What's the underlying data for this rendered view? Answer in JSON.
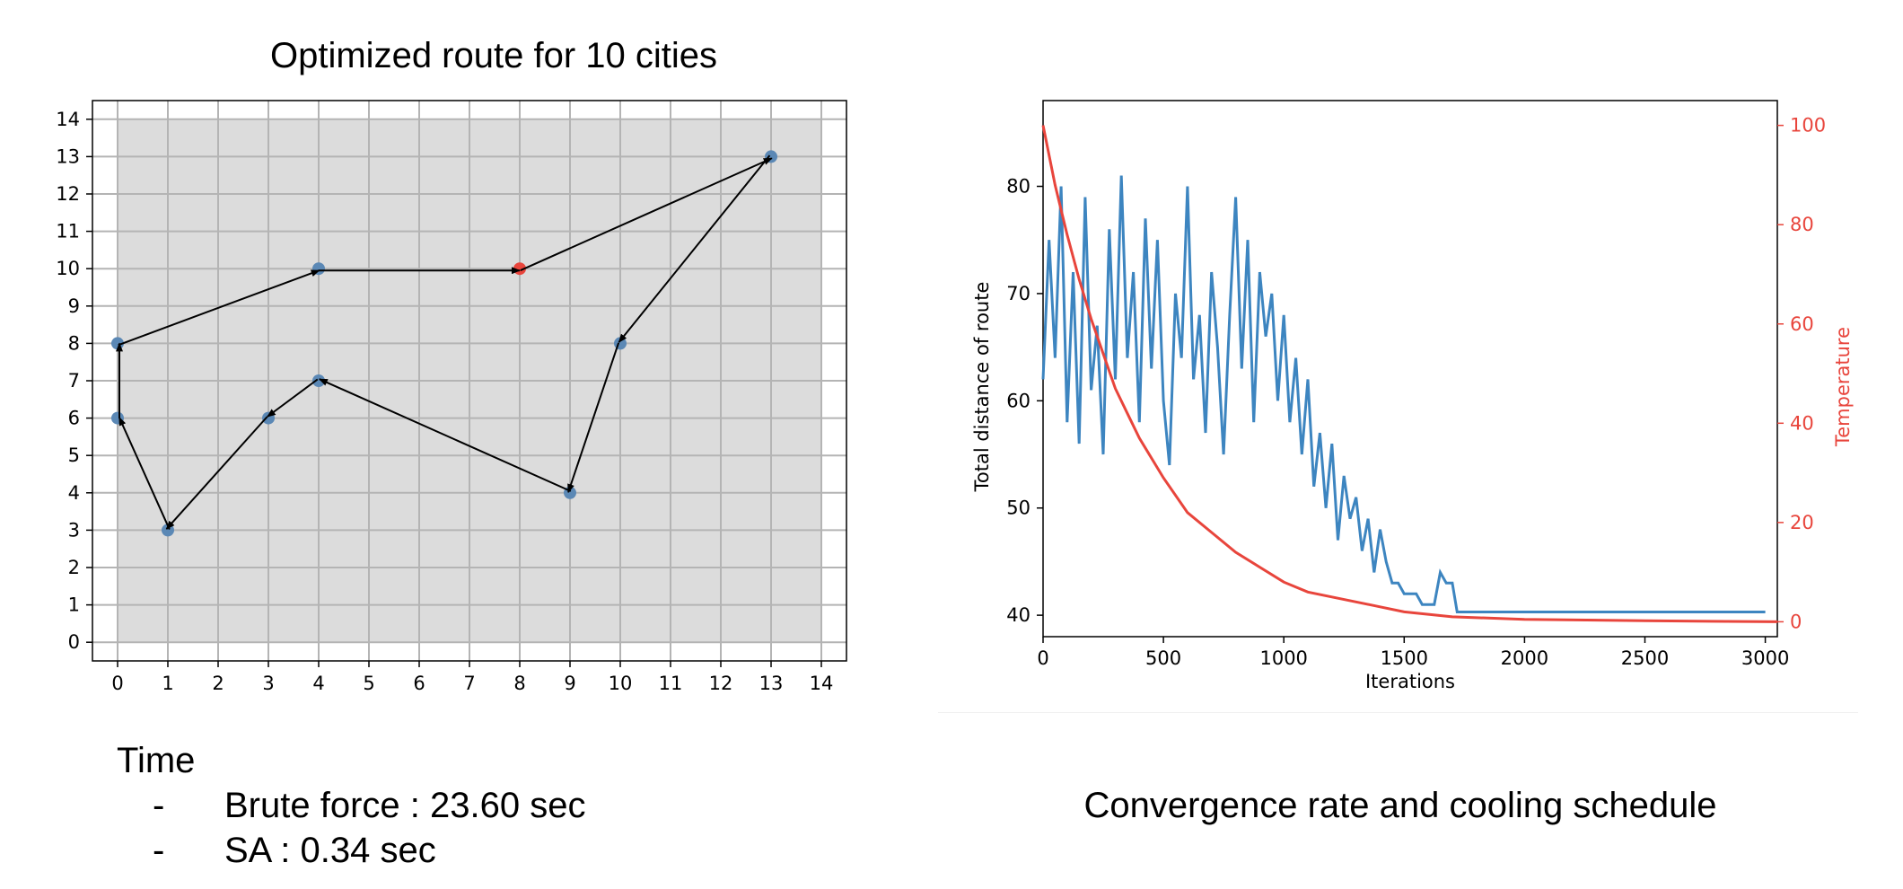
{
  "chart_data": [
    {
      "type": "scatter",
      "title": "Optimized route for 10 cities",
      "xlim": [
        -0.5,
        14.5
      ],
      "ylim": [
        -0.5,
        14.5
      ],
      "x_ticks": [
        0,
        1,
        2,
        3,
        4,
        5,
        6,
        7,
        8,
        9,
        10,
        11,
        12,
        13,
        14
      ],
      "y_ticks": [
        0,
        1,
        2,
        3,
        4,
        5,
        6,
        7,
        8,
        9,
        10,
        11,
        12,
        13,
        14
      ],
      "grid": true,
      "background": "#dcdcdc",
      "points": [
        {
          "x": 8,
          "y": 10,
          "start": true
        },
        {
          "x": 13,
          "y": 13
        },
        {
          "x": 10,
          "y": 8
        },
        {
          "x": 9,
          "y": 4
        },
        {
          "x": 4,
          "y": 7
        },
        {
          "x": 3,
          "y": 6
        },
        {
          "x": 1,
          "y": 3
        },
        {
          "x": 0,
          "y": 6
        },
        {
          "x": 0,
          "y": 8
        },
        {
          "x": 4,
          "y": 10
        }
      ],
      "route": [
        [
          8,
          10
        ],
        [
          13,
          13
        ],
        [
          10,
          8
        ],
        [
          9,
          4
        ],
        [
          4,
          7
        ],
        [
          3,
          6
        ],
        [
          1,
          3
        ],
        [
          0,
          6
        ],
        [
          0,
          8
        ],
        [
          4,
          10
        ],
        [
          8,
          10
        ]
      ],
      "point_color": "#5b88b5",
      "start_color": "#e8453c"
    },
    {
      "type": "line",
      "xlabel": "Iterations",
      "ylabel": "Total distance of route",
      "y2label": "Temperature",
      "xlim": [
        0,
        3050
      ],
      "ylim": [
        38,
        88
      ],
      "y2lim": [
        -3,
        105
      ],
      "x_ticks": [
        0,
        500,
        1000,
        1500,
        2000,
        2500,
        3000
      ],
      "y_ticks": [
        40,
        50,
        60,
        70,
        80
      ],
      "y2_ticks": [
        0,
        20,
        40,
        60,
        80,
        100
      ],
      "series": [
        {
          "axis": "left",
          "color": "#3d85c0",
          "points": [
            [
              0,
              62
            ],
            [
              25,
              75
            ],
            [
              50,
              64
            ],
            [
              75,
              80
            ],
            [
              100,
              58
            ],
            [
              125,
              72
            ],
            [
              150,
              56
            ],
            [
              175,
              79
            ],
            [
              200,
              61
            ],
            [
              225,
              67
            ],
            [
              250,
              55
            ],
            [
              275,
              76
            ],
            [
              300,
              62
            ],
            [
              325,
              81
            ],
            [
              350,
              64
            ],
            [
              375,
              72
            ],
            [
              400,
              58
            ],
            [
              425,
              77
            ],
            [
              450,
              63
            ],
            [
              475,
              75
            ],
            [
              500,
              60
            ],
            [
              525,
              54
            ],
            [
              550,
              70
            ],
            [
              575,
              64
            ],
            [
              600,
              80
            ],
            [
              625,
              62
            ],
            [
              650,
              68
            ],
            [
              675,
              57
            ],
            [
              700,
              72
            ],
            [
              725,
              65
            ],
            [
              750,
              55
            ],
            [
              775,
              68
            ],
            [
              800,
              79
            ],
            [
              825,
              63
            ],
            [
              850,
              75
            ],
            [
              875,
              58
            ],
            [
              900,
              72
            ],
            [
              925,
              66
            ],
            [
              950,
              70
            ],
            [
              975,
              60
            ],
            [
              1000,
              68
            ],
            [
              1025,
              58
            ],
            [
              1050,
              64
            ],
            [
              1075,
              55
            ],
            [
              1100,
              62
            ],
            [
              1125,
              52
            ],
            [
              1150,
              57
            ],
            [
              1175,
              50
            ],
            [
              1200,
              56
            ],
            [
              1225,
              47
            ],
            [
              1250,
              53
            ],
            [
              1275,
              49
            ],
            [
              1300,
              51
            ],
            [
              1325,
              46
            ],
            [
              1350,
              49
            ],
            [
              1375,
              44
            ],
            [
              1400,
              48
            ],
            [
              1425,
              45
            ],
            [
              1450,
              43
            ],
            [
              1475,
              43
            ],
            [
              1500,
              42
            ],
            [
              1550,
              42
            ],
            [
              1575,
              41
            ],
            [
              1625,
              41
            ],
            [
              1650,
              44
            ],
            [
              1675,
              43
            ],
            [
              1700,
              43
            ],
            [
              1720,
              40.3
            ],
            [
              1800,
              40.3
            ],
            [
              1900,
              40.3
            ],
            [
              2000,
              40.3
            ],
            [
              2200,
              40.3
            ],
            [
              2500,
              40.3
            ],
            [
              3000,
              40.3
            ]
          ]
        },
        {
          "axis": "right",
          "color": "#e8453c",
          "points": [
            [
              0,
              100
            ],
            [
              50,
              88
            ],
            [
              100,
              78
            ],
            [
              150,
              69
            ],
            [
              200,
              61
            ],
            [
              250,
              54
            ],
            [
              300,
              47
            ],
            [
              350,
              42
            ],
            [
              400,
              37
            ],
            [
              450,
              33
            ],
            [
              500,
              29
            ],
            [
              600,
              22
            ],
            [
              700,
              18
            ],
            [
              800,
              14
            ],
            [
              900,
              11
            ],
            [
              1000,
              8
            ],
            [
              1100,
              6
            ],
            [
              1200,
              5
            ],
            [
              1300,
              4
            ],
            [
              1400,
              3
            ],
            [
              1500,
              2
            ],
            [
              1700,
              1
            ],
            [
              2000,
              0.5
            ],
            [
              2500,
              0.2
            ],
            [
              3050,
              0
            ]
          ]
        }
      ]
    }
  ],
  "time": {
    "heading": "Time",
    "rows": [
      {
        "dash": "-",
        "text": "Brute force : 23.60 sec"
      },
      {
        "dash": "-",
        "text": "SA : 0.34 sec"
      }
    ]
  },
  "right_caption": "Convergence rate and cooling schedule"
}
